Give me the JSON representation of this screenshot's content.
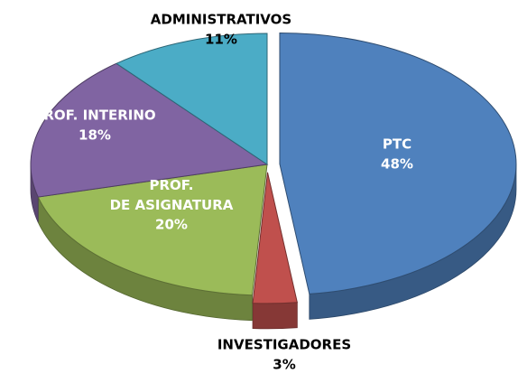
{
  "chart_data": {
    "type": "pie3d",
    "categories": [
      "PTC",
      "INVESTIGADORES",
      "PROF. DE ASIGNATURA",
      "PROF. INTERINO",
      "ADMINISTRATIVOS"
    ],
    "values": [
      48,
      3,
      20,
      18,
      11
    ],
    "value_labels": [
      "48%",
      "3%",
      "20%",
      "18%",
      "11%"
    ],
    "colors": [
      "#4f81bd",
      "#c0504d",
      "#9bbb59",
      "#8064a2",
      "#4bacc6"
    ],
    "label_colors": [
      "#ffffff",
      "#000000",
      "#ffffff",
      "#ffffff",
      "#000000"
    ]
  }
}
